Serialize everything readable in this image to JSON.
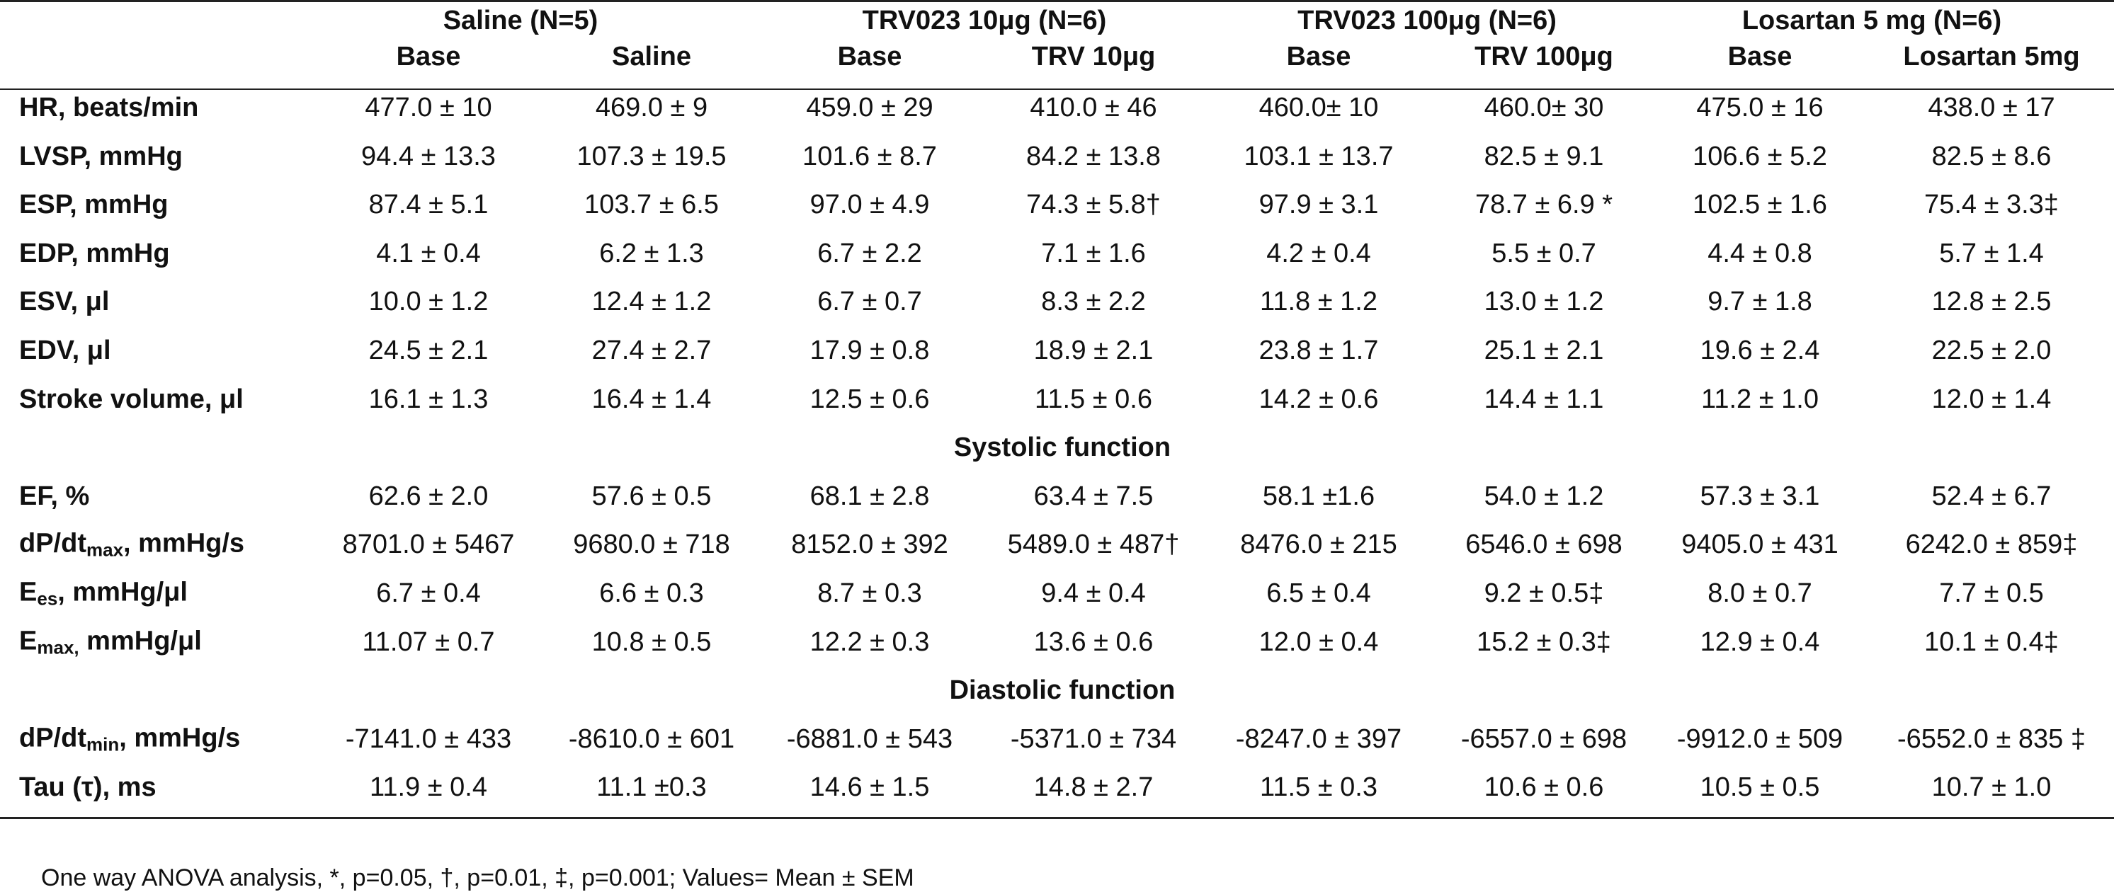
{
  "header": {
    "groups": [
      "Saline (N=5)",
      "TRV023 10μg (N=6)",
      "TRV023 100μg (N=6)",
      "Losartan 5 mg (N=6)"
    ],
    "columns": [
      "Base",
      "Saline",
      "Base",
      "TRV 10μg",
      "Base",
      "TRV 100μg",
      "Base",
      "Losartan 5mg"
    ]
  },
  "sections": [
    {
      "rows": [
        {
          "label": {
            "text": "HR, beats/min"
          },
          "values": [
            "477.0 ± 10",
            "469.0 ± 9",
            "459.0 ± 29",
            "410.0 ± 46",
            "460.0± 10",
            "460.0± 30",
            "475.0 ± 16",
            "438.0 ± 17"
          ]
        },
        {
          "label": {
            "text": "LVSP, mmHg"
          },
          "values": [
            "94.4 ± 13.3",
            "107.3 ± 19.5",
            "101.6 ± 8.7",
            "84.2 ± 13.8",
            "103.1 ± 13.7",
            "82.5 ± 9.1",
            "106.6 ± 5.2",
            "82.5 ± 8.6"
          ]
        },
        {
          "label": {
            "text": "ESP, mmHg"
          },
          "values": [
            "87.4 ± 5.1",
            "103.7 ± 6.5",
            "97.0 ± 4.9",
            "74.3 ± 5.8†",
            "97.9 ± 3.1",
            "78.7 ± 6.9 *",
            "102.5 ± 1.6",
            "75.4 ± 3.3‡"
          ]
        },
        {
          "label": {
            "text": "EDP, mmHg"
          },
          "values": [
            "4.1 ± 0.4",
            "6.2 ± 1.3",
            "6.7 ± 2.2",
            "7.1 ± 1.6",
            "4.2 ± 0.4",
            "5.5 ± 0.7",
            "4.4 ± 0.8",
            "5.7 ± 1.4"
          ]
        },
        {
          "label": {
            "text": "ESV, μl"
          },
          "values": [
            "10.0 ± 1.2",
            "12.4 ± 1.2",
            "6.7 ± 0.7",
            "8.3 ± 2.2",
            "11.8 ± 1.2",
            "13.0 ± 1.2",
            "9.7 ± 1.8",
            "12.8 ± 2.5"
          ]
        },
        {
          "label": {
            "text": "EDV, μl"
          },
          "values": [
            "24.5 ± 2.1",
            "27.4 ± 2.7",
            "17.9 ± 0.8",
            "18.9 ± 2.1",
            "23.8 ± 1.7",
            "25.1 ± 2.1",
            "19.6 ± 2.4",
            "22.5 ± 2.0"
          ]
        },
        {
          "label": {
            "text": "Stroke volume, μl"
          },
          "values": [
            "16.1 ± 1.3",
            "16.4 ± 1.4",
            "12.5 ± 0.6",
            "11.5 ± 0.6",
            "14.2 ± 0.6",
            "14.4 ± 1.1",
            "11.2 ± 1.0",
            "12.0 ± 1.4"
          ]
        }
      ]
    },
    {
      "title": "Systolic function",
      "rows": [
        {
          "label": {
            "text": "EF, %"
          },
          "values": [
            "62.6 ± 2.0",
            "57.6 ± 0.5",
            "68.1 ± 2.8",
            "63.4 ± 7.5",
            "58.1 ±1.6",
            "54.0 ± 1.2",
            "57.3 ± 3.1",
            "52.4 ± 6.7"
          ]
        },
        {
          "label": {
            "text": "dP/dt",
            "sub": "max",
            "after": ", mmHg/s"
          },
          "values": [
            "8701.0 ± 5467",
            "9680.0 ± 718",
            "8152.0 ± 392",
            "5489.0 ± 487†",
            "8476.0 ± 215",
            "6546.0 ± 698",
            "9405.0 ± 431",
            "6242.0 ± 859‡"
          ]
        },
        {
          "label": {
            "text": "E",
            "sub": "es",
            "after": ", mmHg/μl"
          },
          "values": [
            "6.7 ± 0.4",
            "6.6 ± 0.3",
            "8.7 ± 0.3",
            "9.4 ± 0.4",
            "6.5 ± 0.4",
            "9.2 ± 0.5‡",
            "8.0 ± 0.7",
            "7.7 ± 0.5"
          ]
        },
        {
          "label": {
            "text": "E",
            "sub": "max,",
            "after": " mmHg/μl"
          },
          "values": [
            "11.07 ± 0.7",
            "10.8 ± 0.5",
            "12.2 ± 0.3",
            "13.6 ± 0.6",
            "12.0 ± 0.4",
            "15.2 ± 0.3‡",
            "12.9 ± 0.4",
            "10.1 ± 0.4‡"
          ]
        }
      ]
    },
    {
      "title": "Diastolic function",
      "rows": [
        {
          "label": {
            "text": "dP/dt",
            "sub": "min",
            "after": ", mmHg/s"
          },
          "values": [
            "-7141.0 ± 433",
            "-8610.0 ± 601",
            "-6881.0 ± 543",
            "-5371.0 ± 734",
            "-8247.0 ± 397",
            "-6557.0 ± 698",
            "-9912.0 ± 509",
            "-6552.0 ± 835 ‡"
          ]
        },
        {
          "label": {
            "text": "Tau (τ), ms"
          },
          "values": [
            "11.9 ± 0.4",
            "11.1 ±0.3",
            "14.6 ± 1.5",
            "14.8 ± 2.7",
            "11.5 ± 0.3",
            "10.6 ± 0.6",
            "10.5 ± 0.5",
            "10.7 ± 1.0"
          ]
        }
      ]
    }
  ],
  "footnote": "One way ANOVA analysis, *, p=0.05, †, p=0.01, ‡, p=0.001; Values= Mean ± SEM"
}
